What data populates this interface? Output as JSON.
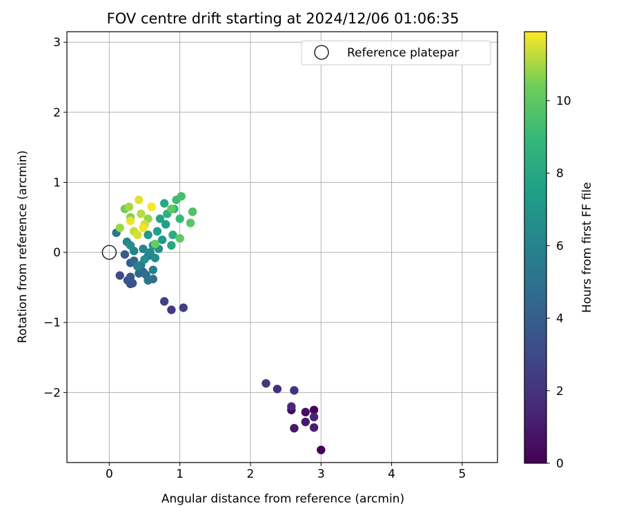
{
  "chart_data": {
    "type": "scatter",
    "title": "FOV centre drift starting at 2024/12/06 01:06:35",
    "xlabel": "Angular distance from reference (arcmin)",
    "ylabel": "Rotation from reference (arcmin)",
    "xlim": [
      -0.6,
      5.5
    ],
    "ylim": [
      -3.0,
      3.15
    ],
    "xticks": [
      0,
      1,
      2,
      3,
      4,
      5
    ],
    "yticks": [
      -2,
      -1,
      0,
      1,
      2,
      3
    ],
    "grid": true,
    "colorbar": {
      "label": "Hours from first FF file",
      "colormap": "viridis",
      "range": [
        0,
        11.9
      ],
      "ticks": [
        0,
        2,
        4,
        6,
        8,
        10
      ]
    },
    "legend": {
      "position": "top-right",
      "entries": [
        "Reference platepar"
      ]
    },
    "reference_point": {
      "x": 0,
      "y": 0
    },
    "series": [
      {
        "points": [
          {
            "x": 3.0,
            "y": -2.82,
            "c": 0.0
          },
          {
            "x": 2.9,
            "y": -2.25,
            "c": 0.2
          },
          {
            "x": 2.58,
            "y": -2.25,
            "c": 0.3
          },
          {
            "x": 2.78,
            "y": -2.28,
            "c": 0.5
          },
          {
            "x": 2.62,
            "y": -2.51,
            "c": 0.8
          },
          {
            "x": 2.78,
            "y": -2.42,
            "c": 1.0
          },
          {
            "x": 2.9,
            "y": -2.5,
            "c": 1.2
          },
          {
            "x": 2.9,
            "y": -2.35,
            "c": 1.4
          },
          {
            "x": 2.58,
            "y": -2.2,
            "c": 1.6
          },
          {
            "x": 2.38,
            "y": -1.95,
            "c": 1.8
          },
          {
            "x": 2.62,
            "y": -1.97,
            "c": 2.0
          },
          {
            "x": 2.22,
            "y": -1.87,
            "c": 2.1
          },
          {
            "x": 0.88,
            "y": -0.82,
            "c": 2.3
          },
          {
            "x": 1.05,
            "y": -0.79,
            "c": 2.5
          },
          {
            "x": 0.78,
            "y": -0.7,
            "c": 2.6
          },
          {
            "x": 0.15,
            "y": -0.33,
            "c": 3.0
          },
          {
            "x": 0.3,
            "y": -0.45,
            "c": 3.2
          },
          {
            "x": 0.33,
            "y": -0.44,
            "c": 3.4
          },
          {
            "x": 0.26,
            "y": -0.4,
            "c": 3.5
          },
          {
            "x": 0.3,
            "y": -0.35,
            "c": 3.7
          },
          {
            "x": 0.22,
            "y": -0.03,
            "c": 3.9
          },
          {
            "x": 0.3,
            "y": -0.15,
            "c": 4.0
          },
          {
            "x": 0.48,
            "y": -0.28,
            "c": 4.2
          },
          {
            "x": 0.42,
            "y": -0.3,
            "c": 4.4
          },
          {
            "x": 0.35,
            "y": -0.12,
            "c": 4.6
          },
          {
            "x": 0.52,
            "y": -0.32,
            "c": 4.8
          },
          {
            "x": 0.62,
            "y": -0.38,
            "c": 5.0
          },
          {
            "x": 0.55,
            "y": -0.4,
            "c": 5.2
          },
          {
            "x": 0.1,
            "y": 0.28,
            "c": 5.3
          },
          {
            "x": 0.55,
            "y": -0.05,
            "c": 5.4
          },
          {
            "x": 0.45,
            "y": -0.18,
            "c": 5.6
          },
          {
            "x": 0.62,
            "y": -0.25,
            "c": 5.7
          },
          {
            "x": 0.4,
            "y": -0.2,
            "c": 5.9
          },
          {
            "x": 0.35,
            "y": 0.02,
            "c": 6.0
          },
          {
            "x": 0.25,
            "y": 0.15,
            "c": 6.1
          },
          {
            "x": 0.48,
            "y": 0.05,
            "c": 6.2
          },
          {
            "x": 0.58,
            "y": 0.0,
            "c": 6.4
          },
          {
            "x": 0.65,
            "y": -0.08,
            "c": 6.5
          },
          {
            "x": 0.3,
            "y": 0.1,
            "c": 6.6
          },
          {
            "x": 0.5,
            "y": -0.1,
            "c": 6.7
          },
          {
            "x": 0.7,
            "y": 0.05,
            "c": 6.8
          },
          {
            "x": 0.62,
            "y": 0.1,
            "c": 7.0
          },
          {
            "x": 0.75,
            "y": 0.18,
            "c": 7.2
          },
          {
            "x": 0.55,
            "y": 0.25,
            "c": 7.3
          },
          {
            "x": 0.8,
            "y": 0.4,
            "c": 7.5
          },
          {
            "x": 0.68,
            "y": 0.3,
            "c": 7.6
          },
          {
            "x": 0.72,
            "y": 0.48,
            "c": 7.8
          },
          {
            "x": 0.88,
            "y": 0.1,
            "c": 8.0
          },
          {
            "x": 0.78,
            "y": 0.7,
            "c": 8.1
          },
          {
            "x": 0.9,
            "y": 0.25,
            "c": 8.3
          },
          {
            "x": 0.82,
            "y": 0.55,
            "c": 8.5
          },
          {
            "x": 0.92,
            "y": 0.62,
            "c": 8.7
          },
          {
            "x": 1.0,
            "y": 0.48,
            "c": 9.0
          },
          {
            "x": 0.95,
            "y": 0.75,
            "c": 9.2
          },
          {
            "x": 1.02,
            "y": 0.8,
            "c": 9.4
          },
          {
            "x": 1.18,
            "y": 0.58,
            "c": 9.6
          },
          {
            "x": 1.15,
            "y": 0.42,
            "c": 9.8
          },
          {
            "x": 1.0,
            "y": 0.2,
            "c": 10.0
          },
          {
            "x": 0.88,
            "y": 0.62,
            "c": 10.1
          },
          {
            "x": 0.65,
            "y": 0.12,
            "c": 10.2
          },
          {
            "x": 0.22,
            "y": 0.62,
            "c": 10.4
          },
          {
            "x": 0.3,
            "y": 0.5,
            "c": 10.6
          },
          {
            "x": 0.55,
            "y": 0.48,
            "c": 10.8
          },
          {
            "x": 0.15,
            "y": 0.35,
            "c": 10.9
          },
          {
            "x": 0.28,
            "y": 0.65,
            "c": 11.0
          },
          {
            "x": 0.45,
            "y": 0.55,
            "c": 11.2
          },
          {
            "x": 0.35,
            "y": 0.3,
            "c": 11.3
          },
          {
            "x": 0.5,
            "y": 0.4,
            "c": 11.4
          },
          {
            "x": 0.4,
            "y": 0.25,
            "c": 11.5
          },
          {
            "x": 0.42,
            "y": 0.75,
            "c": 11.6
          },
          {
            "x": 0.3,
            "y": 0.45,
            "c": 11.7
          },
          {
            "x": 0.48,
            "y": 0.35,
            "c": 11.8
          },
          {
            "x": 0.6,
            "y": 0.65,
            "c": 11.85
          }
        ]
      }
    ]
  }
}
